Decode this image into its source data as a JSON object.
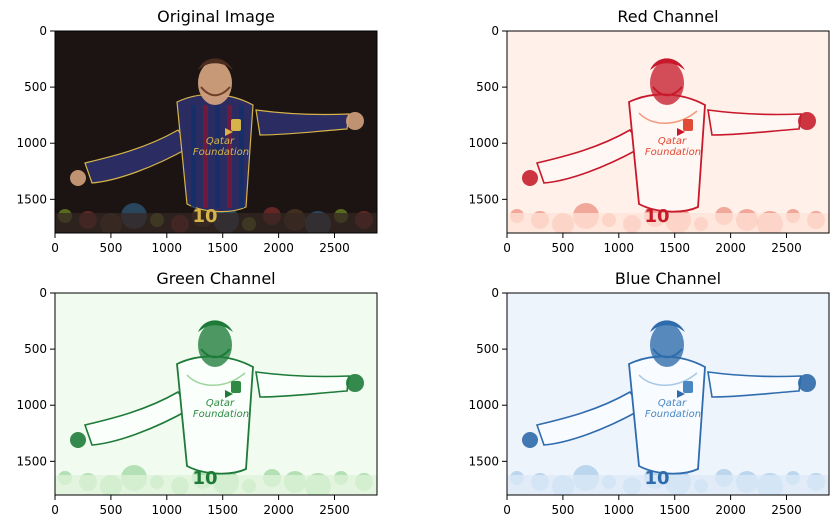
{
  "chart_data": [
    {
      "type": "image",
      "title": "Original Image",
      "colormap": "rgb",
      "xlim": [
        0,
        2880
      ],
      "ylim": [
        1800,
        0
      ],
      "xticks": [
        0,
        500,
        1000,
        1500,
        2000,
        2500
      ],
      "yticks": [
        0,
        500,
        1000,
        1500
      ],
      "xticklabels": [
        "0",
        "500",
        "1000",
        "1500",
        "2000",
        "2500"
      ],
      "yticklabels": [
        "0",
        "500",
        "1000",
        "1500"
      ],
      "jersey_text": [
        "Qatar",
        "Foundation"
      ],
      "number": "10"
    },
    {
      "type": "image",
      "title": "Red Channel",
      "colormap": "Reds",
      "xlim": [
        0,
        2880
      ],
      "ylim": [
        1800,
        0
      ],
      "xticks": [
        0,
        500,
        1000,
        1500,
        2000,
        2500
      ],
      "yticks": [
        0,
        500,
        1000,
        1500
      ],
      "xticklabels": [
        "0",
        "500",
        "1000",
        "1500",
        "2000",
        "2500"
      ],
      "yticklabels": [
        "0",
        "500",
        "1000",
        "1500"
      ],
      "jersey_text": [
        "Qatar",
        "Foundation"
      ],
      "number": "10"
    },
    {
      "type": "image",
      "title": "Green Channel",
      "colormap": "Greens",
      "xlim": [
        0,
        2880
      ],
      "ylim": [
        1800,
        0
      ],
      "xticks": [
        0,
        500,
        1000,
        1500,
        2000,
        2500
      ],
      "yticks": [
        0,
        500,
        1000,
        1500
      ],
      "xticklabels": [
        "0",
        "500",
        "1000",
        "1500",
        "2000",
        "2500"
      ],
      "yticklabels": [
        "0",
        "500",
        "1000",
        "1500"
      ],
      "jersey_text": [
        "Qatar",
        "Foundation"
      ],
      "number": "10"
    },
    {
      "type": "image",
      "title": "Blue Channel",
      "colormap": "Blues",
      "xlim": [
        0,
        2880
      ],
      "ylim": [
        1800,
        0
      ],
      "xticks": [
        0,
        500,
        1000,
        1500,
        2000,
        2500
      ],
      "yticks": [
        0,
        500,
        1000,
        1500
      ],
      "xticklabels": [
        "0",
        "500",
        "1000",
        "1500",
        "2000",
        "2500"
      ],
      "yticklabels": [
        "0",
        "500",
        "1000",
        "1500"
      ],
      "jersey_text": [
        "Qatar",
        "Foundation"
      ],
      "number": "10"
    }
  ],
  "colors": {
    "axis": "#000000",
    "background": "#ffffff",
    "original_bg": "#1b1412",
    "original_shirt": "#2a2c62",
    "original_stripe": "#7a1830",
    "original_skin": "#d2a07d",
    "original_gold": "#d6b44a",
    "red_bg": "#fff0ea",
    "red_accent": "#c8192b",
    "red_mid": "#f59a7e",
    "green_bg": "#f1fbef",
    "green_accent": "#1d7a38",
    "green_mid": "#9fd49d",
    "blue_bg": "#eef4fc",
    "blue_accent": "#2f6cad",
    "blue_mid": "#a7c8e5"
  }
}
